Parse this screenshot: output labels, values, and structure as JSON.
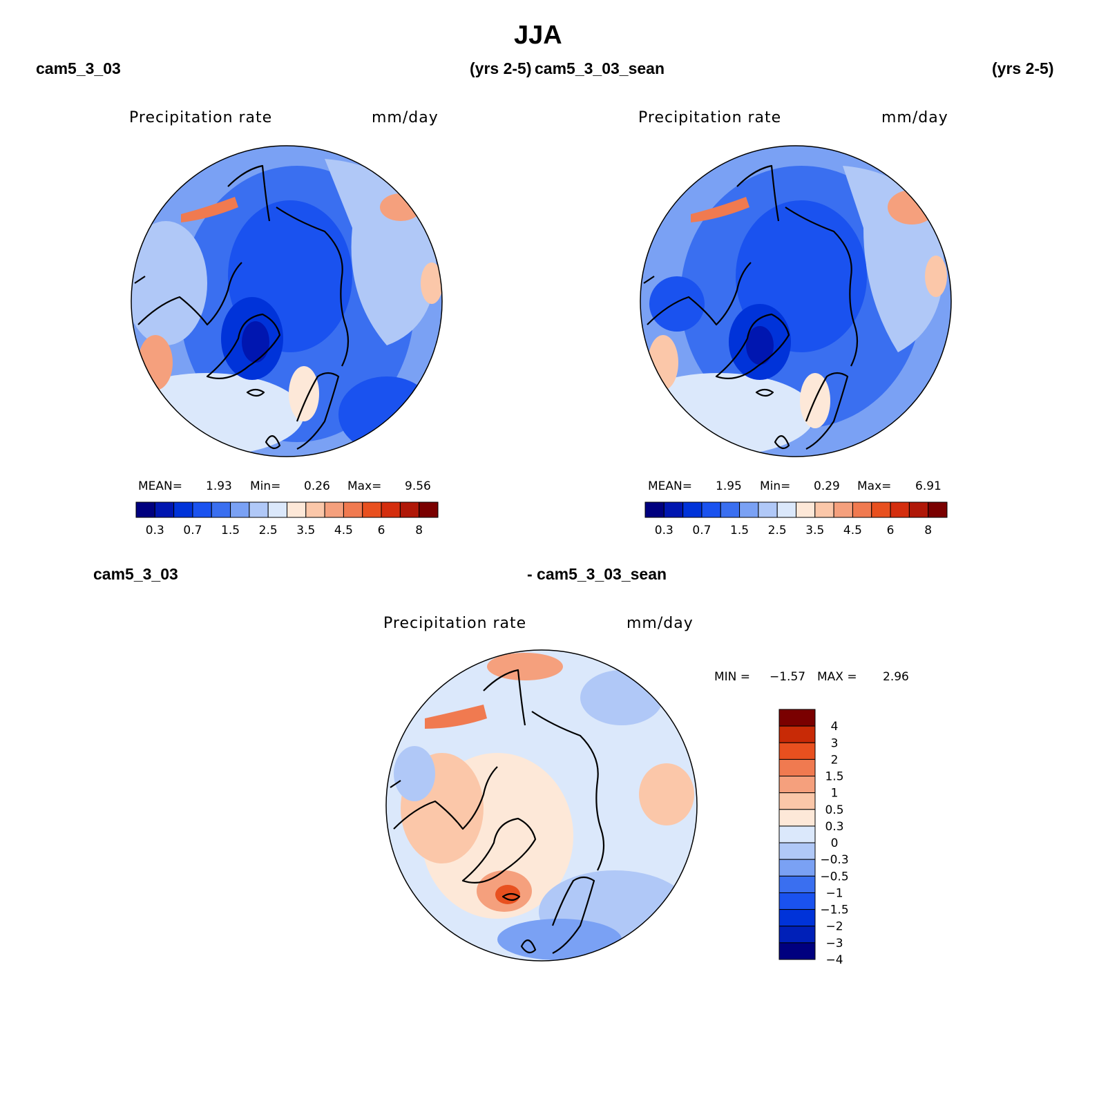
{
  "page": {
    "season": "JJA",
    "left_case": "cam5_3_03",
    "left_years": "(yrs 2-5)",
    "right_case": "cam5_3_03_sean",
    "right_years": "(yrs 2-5)",
    "diff_left": "cam5_3_03",
    "diff_right": "- cam5_3_03_sean"
  },
  "colors": {
    "seq": [
      "#00007f",
      "#0016b0",
      "#0033d9",
      "#1a52ef",
      "#3a6ff0",
      "#7aa1f4",
      "#b0c8f7",
      "#dbe8fb",
      "#fde8d8",
      "#fbc7a9",
      "#f5a07d",
      "#f07a50",
      "#e8501f",
      "#d42e0e",
      "#b01808",
      "#7a0000"
    ],
    "div": [
      "#00007f",
      "#0020b8",
      "#0033d9",
      "#1a52ef",
      "#3a6ff0",
      "#7aa1f4",
      "#b0c8f7",
      "#dbe8fb",
      "#fde8d8",
      "#fbc7a9",
      "#f5a07d",
      "#f07a50",
      "#e8501f",
      "#c82a06",
      "#7a0000"
    ]
  },
  "chart_data": [
    {
      "type": "heatmap",
      "projection": "north-polar-stereographic",
      "title": "Precipitation rate",
      "units": "mm/day",
      "case": "cam5_3_03",
      "years": "(yrs 2-5)",
      "stats": {
        "mean_label": "MEAN=",
        "mean": "1.93",
        "min_label": "Min=",
        "min": "0.26",
        "max_label": "Max=",
        "max": "9.56"
      },
      "levels": [
        "0.2",
        "0.3",
        "0.5",
        "0.7",
        "1",
        "1.5",
        "2",
        "2.5",
        "3",
        "3.5",
        "4",
        "4.5",
        "5",
        "6",
        "7",
        "8",
        "9"
      ],
      "tick_labels": [
        "0.3",
        "0.7",
        "1.5",
        "2.5",
        "3.5",
        "4.5",
        "6",
        "8"
      ]
    },
    {
      "type": "heatmap",
      "projection": "north-polar-stereographic",
      "title": "Precipitation rate",
      "units": "mm/day",
      "case": "cam5_3_03_sean",
      "years": "(yrs 2-5)",
      "stats": {
        "mean_label": "MEAN=",
        "mean": "1.95",
        "min_label": "Min=",
        "min": "0.29",
        "max_label": "Max=",
        "max": "6.91"
      },
      "levels": [
        "0.2",
        "0.3",
        "0.5",
        "0.7",
        "1",
        "1.5",
        "2",
        "2.5",
        "3",
        "3.5",
        "4",
        "4.5",
        "5",
        "6",
        "7",
        "8",
        "9"
      ],
      "tick_labels": [
        "0.3",
        "0.7",
        "1.5",
        "2.5",
        "3.5",
        "4.5",
        "6",
        "8"
      ]
    },
    {
      "type": "heatmap",
      "projection": "north-polar-stereographic",
      "title": "Precipitation rate",
      "units": "mm/day",
      "case": "cam5_3_03 - cam5_3_03_sean",
      "stats": {
        "min_label": "MIN =",
        "min": "−1.57",
        "max_label": "MAX =",
        "max": "2.96"
      },
      "tick_labels": [
        "4",
        "3",
        "2",
        "1.5",
        "1",
        "0.5",
        "0.3",
        "0",
        "−0.3",
        "−0.5",
        "−1",
        "−1.5",
        "−2",
        "−3",
        "−4"
      ]
    }
  ]
}
